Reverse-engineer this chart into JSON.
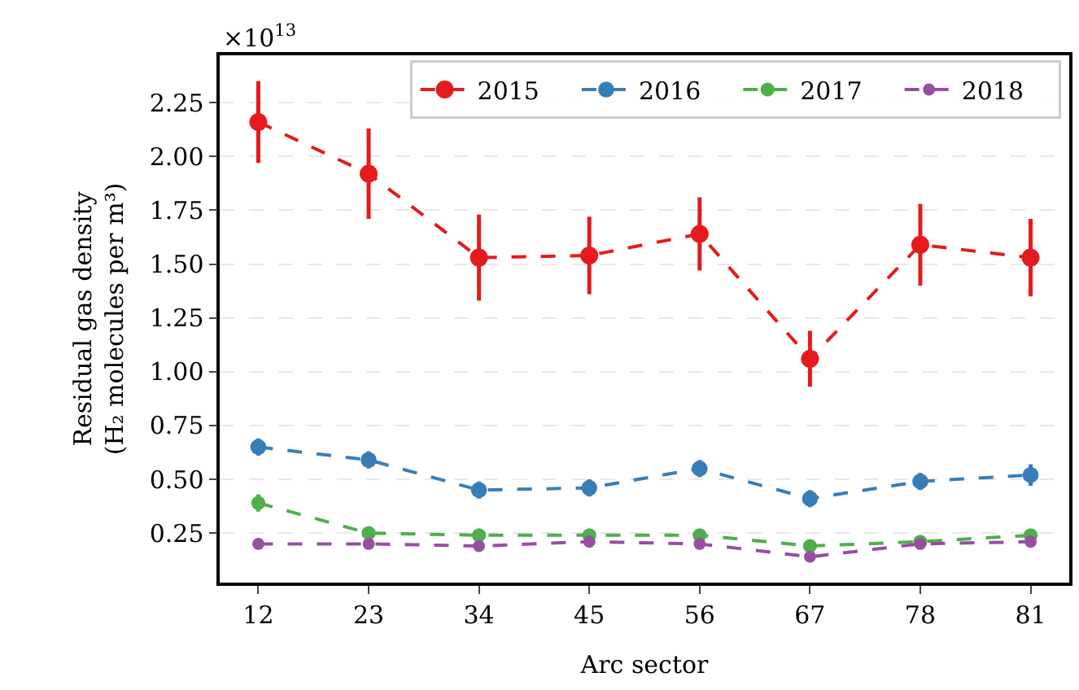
{
  "chart_data": {
    "type": "line",
    "xlabel": "Arc sector",
    "ylabel": "Residual gas density\n(H₂ molecules per m³)",
    "annotations": [
      "×10$^{13}$"
    ],
    "categories": [
      "12",
      "23",
      "34",
      "45",
      "56",
      "67",
      "78",
      "81"
    ],
    "series": [
      {
        "name": "2015",
        "color": "#e41a1c",
        "values": [
          2.16,
          1.92,
          1.53,
          1.54,
          1.64,
          1.06,
          1.59,
          1.53
        ],
        "errors": [
          0.19,
          0.21,
          0.2,
          0.18,
          0.17,
          0.13,
          0.19,
          0.18
        ]
      },
      {
        "name": "2016",
        "color": "#377eb8",
        "values": [
          0.65,
          0.59,
          0.45,
          0.46,
          0.55,
          0.41,
          0.49,
          0.52
        ],
        "errors": [
          0.04,
          0.04,
          0.04,
          0.04,
          0.04,
          0.04,
          0.04,
          0.05
        ]
      },
      {
        "name": "2017",
        "color": "#4daf4a",
        "values": [
          0.39,
          0.25,
          0.24,
          0.24,
          0.24,
          0.19,
          0.21,
          0.24
        ],
        "errors": [
          0.04,
          0.02,
          0.02,
          0.02,
          0.02,
          0.02,
          0.02,
          0.02
        ]
      },
      {
        "name": "2018",
        "color": "#984ea3",
        "values": [
          0.2,
          0.2,
          0.19,
          0.21,
          0.2,
          0.14,
          0.2,
          0.21
        ],
        "errors": [
          0.02,
          0.02,
          0.02,
          0.02,
          0.02,
          0.02,
          0.02,
          0.02
        ]
      }
    ],
    "ylim": [
      0.02,
      2.47
    ],
    "yticks": [
      {
        "value": 0.25,
        "label": "0.25"
      },
      {
        "value": 0.5,
        "label": "0.50"
      },
      {
        "value": 0.75,
        "label": "0.75"
      },
      {
        "value": 1,
        "label": "1.00"
      },
      {
        "value": 1.25,
        "label": "1.25"
      },
      {
        "value": 1.5,
        "label": "1.50"
      },
      {
        "value": 1.75,
        "label": "1.75"
      },
      {
        "value": 2,
        "label": "2.00"
      },
      {
        "value": 2.25,
        "label": "2.25"
      }
    ],
    "grid": "y",
    "legend": "top right",
    "marker": "circle",
    "line_style": "dashed"
  }
}
